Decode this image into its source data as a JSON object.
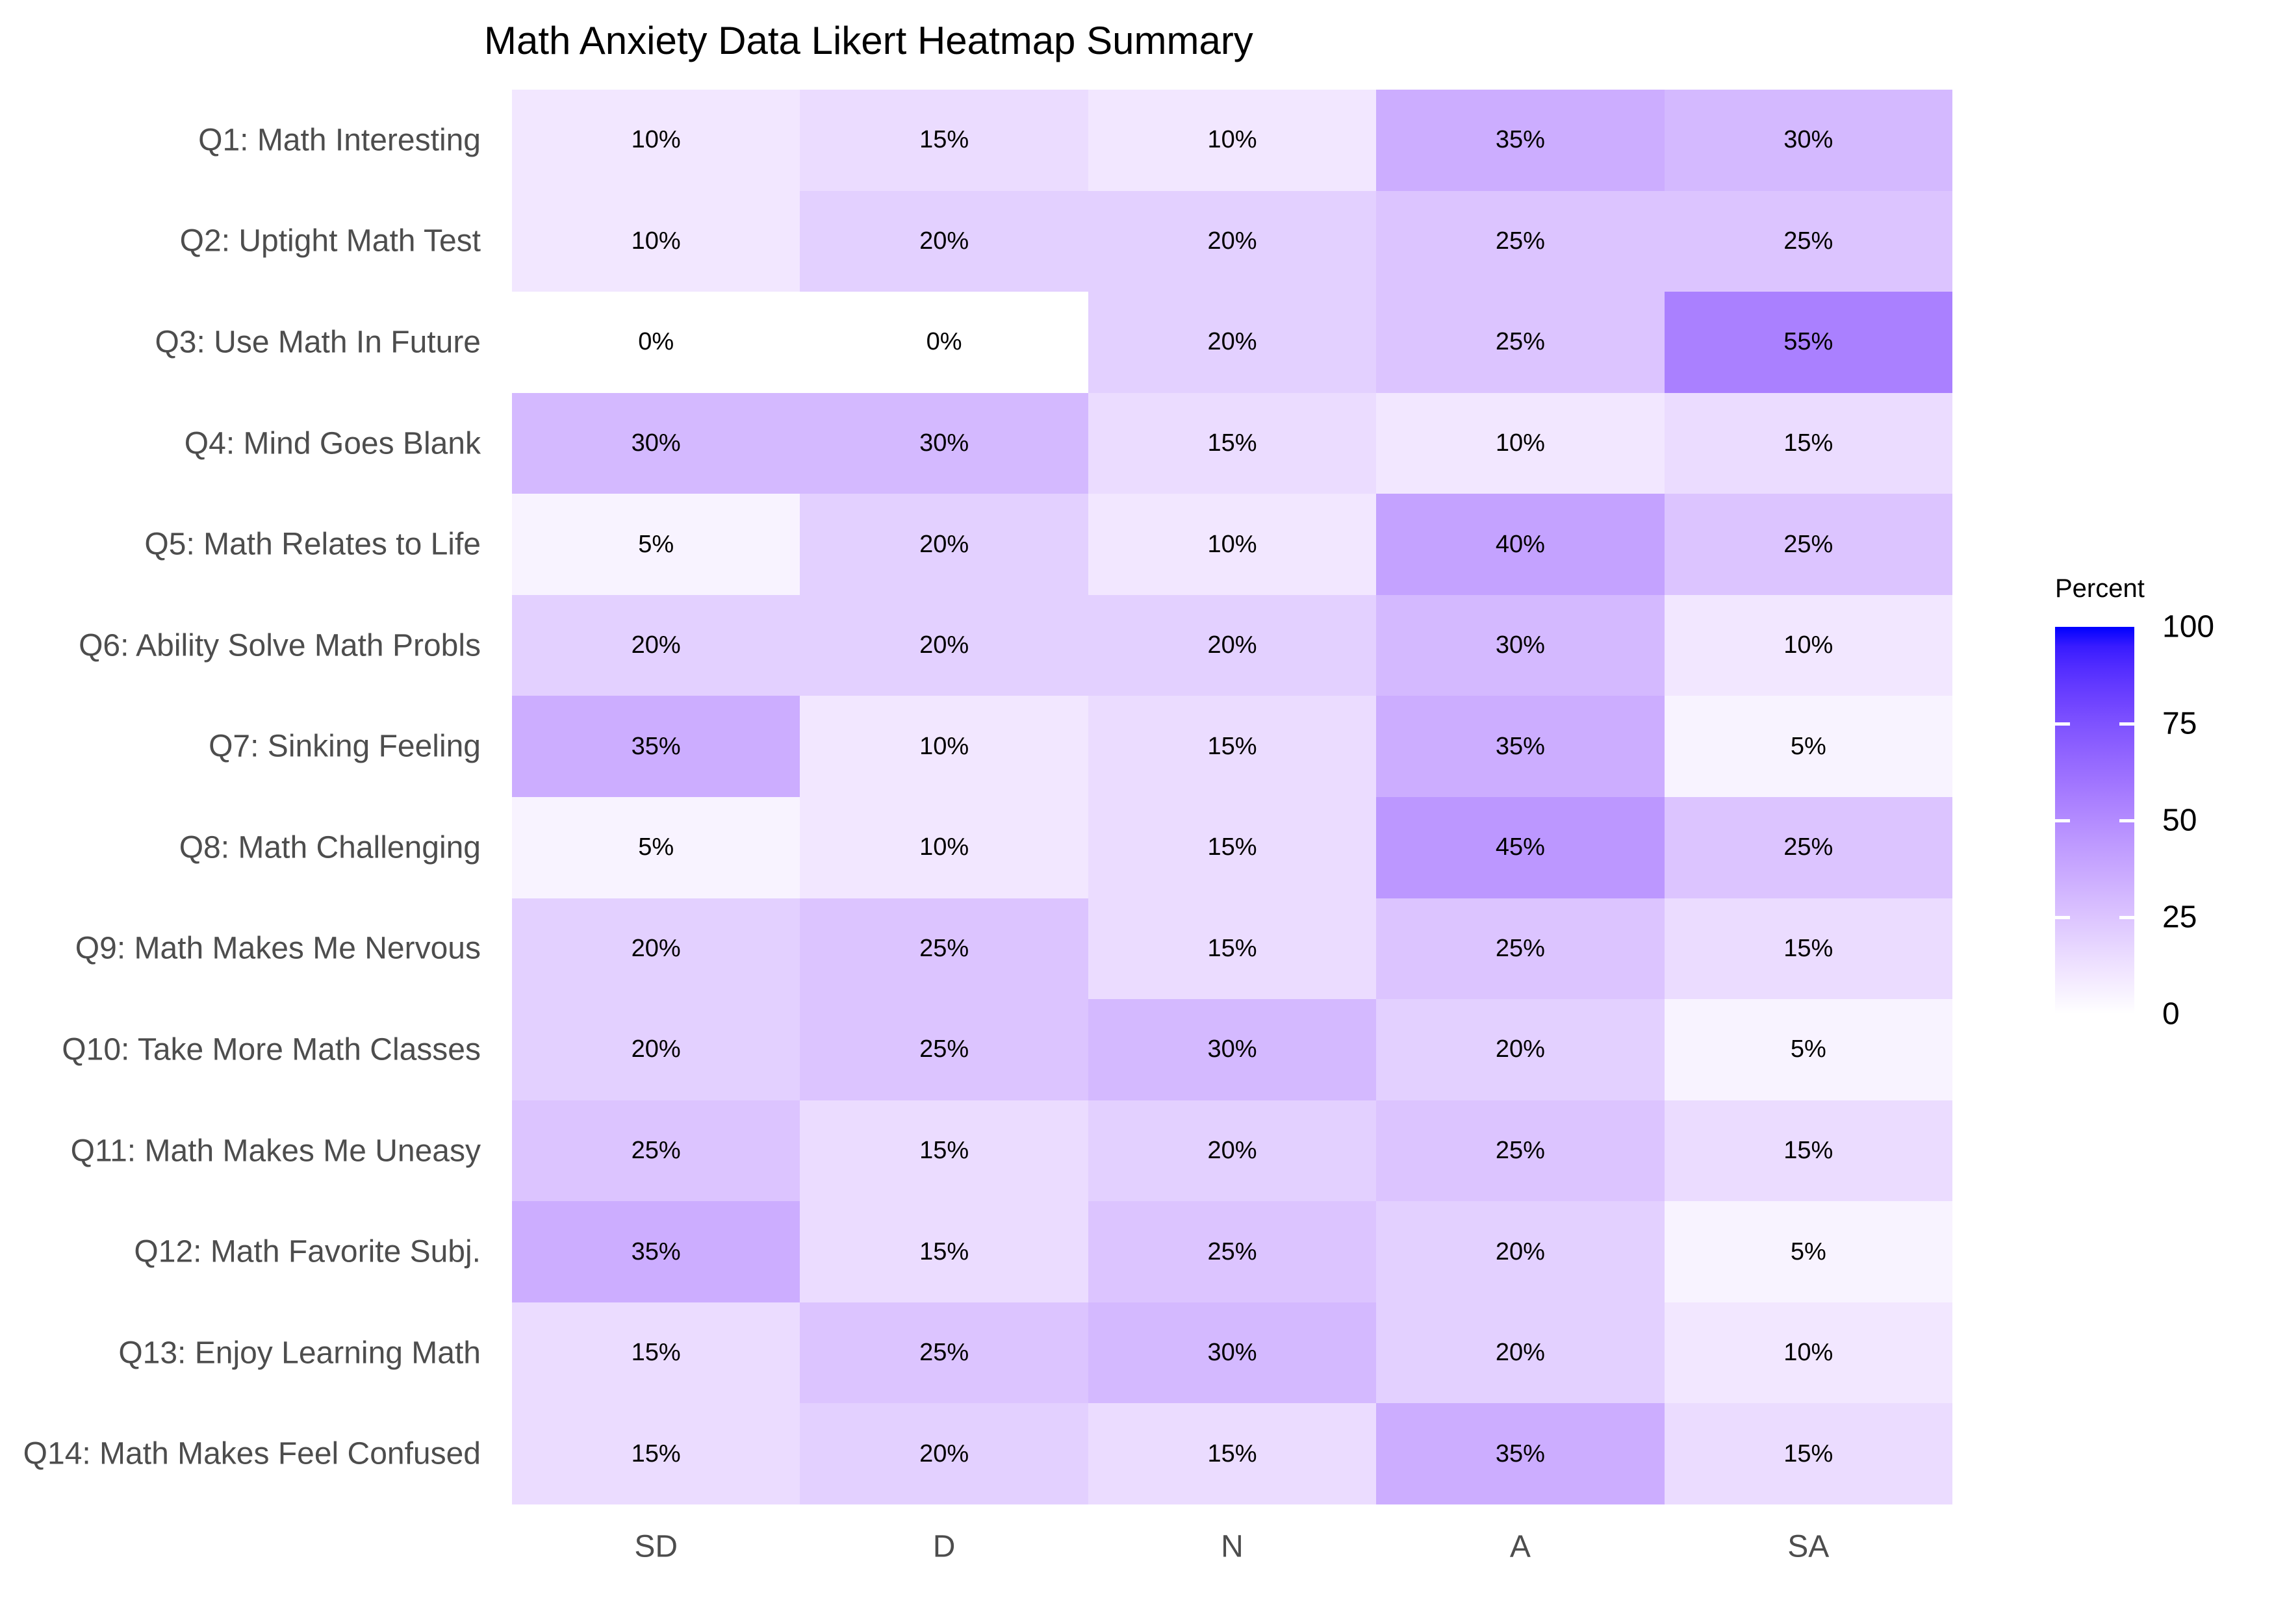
{
  "chart_data": {
    "type": "heatmap",
    "title": "Math Anxiety Data Likert Heatmap Summary",
    "x_categories": [
      "SD",
      "D",
      "N",
      "A",
      "SA"
    ],
    "y_categories": [
      "Q1: Math Interesting",
      "Q2: Uptight Math Test",
      "Q3: Use Math In Future",
      "Q4: Mind Goes Blank",
      "Q5: Math Relates to Life",
      "Q6: Ability Solve Math Probls",
      "Q7: Sinking Feeling",
      "Q8: Math Challenging",
      "Q9: Math Makes Me Nervous",
      "Q10: Take More Math Classes",
      "Q11: Math Makes Me Uneasy",
      "Q12: Math Favorite Subj.",
      "Q13: Enjoy Learning Math",
      "Q14: Math Makes Feel Confused"
    ],
    "values_percent": [
      [
        10,
        15,
        10,
        35,
        30
      ],
      [
        10,
        20,
        20,
        25,
        25
      ],
      [
        0,
        0,
        20,
        25,
        55
      ],
      [
        30,
        30,
        15,
        10,
        15
      ],
      [
        5,
        20,
        10,
        40,
        25
      ],
      [
        20,
        20,
        20,
        30,
        10
      ],
      [
        35,
        10,
        15,
        35,
        5
      ],
      [
        5,
        10,
        15,
        45,
        25
      ],
      [
        20,
        25,
        15,
        25,
        15
      ],
      [
        20,
        25,
        30,
        20,
        5
      ],
      [
        25,
        15,
        20,
        25,
        15
      ],
      [
        35,
        15,
        25,
        20,
        5
      ],
      [
        15,
        25,
        30,
        20,
        10
      ],
      [
        15,
        20,
        15,
        35,
        15
      ]
    ],
    "cell_label_format": "{v}%",
    "grid": false,
    "legend": {
      "title": "Percent",
      "position": "right",
      "min": 0,
      "max": 100,
      "ticks": [
        100,
        75,
        50,
        25,
        0
      ],
      "low_color": "#FFFFFF",
      "high_color": "#0000FF",
      "interpolation": "lab"
    },
    "colors": {
      "axis_text": "#4d4d4d",
      "cell_text": "#000000",
      "title_text": "#000000",
      "background": "#ffffff"
    }
  }
}
